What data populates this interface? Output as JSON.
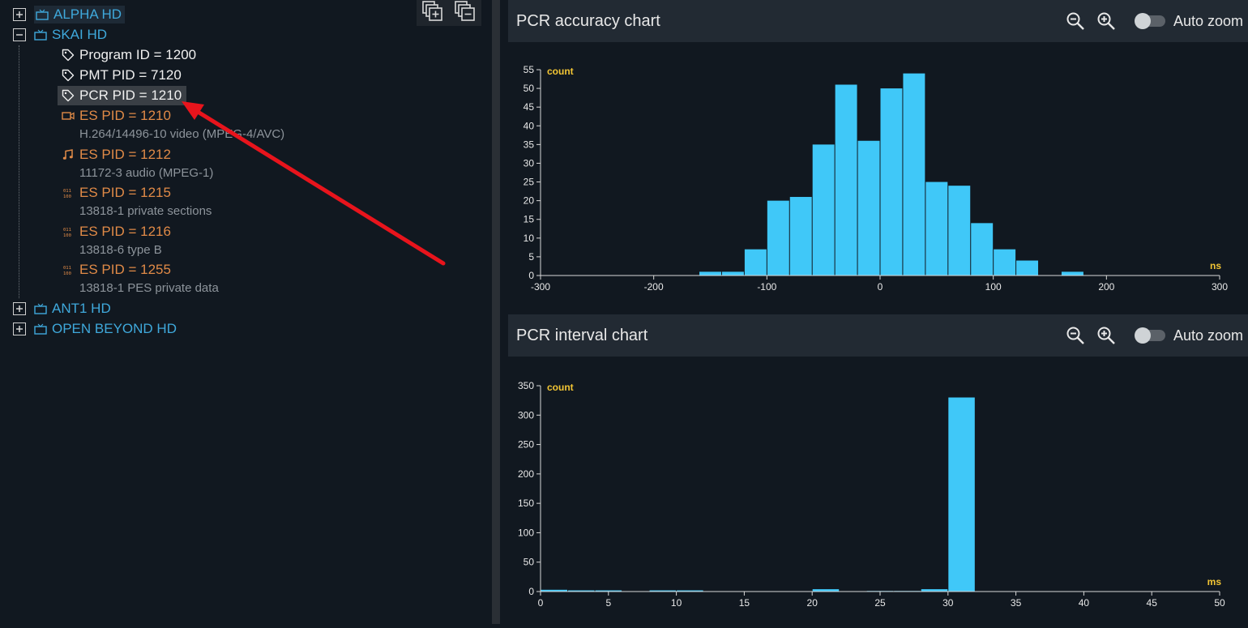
{
  "tree": {
    "services": [
      {
        "name": "ALPHA HD",
        "expanded": false
      },
      {
        "name": "SKAI HD",
        "expanded": true
      },
      {
        "name": "ANT1 HD",
        "expanded": false
      },
      {
        "name": "OPEN BEYOND HD",
        "expanded": false
      }
    ],
    "skai_children": {
      "program_id": "Program ID = 1200",
      "pmt_pid": "PMT PID = 7120",
      "pcr_pid": "PCR PID = 1210",
      "streams": [
        {
          "label": "ES PID = 1210",
          "desc": "H.264/14496-10 video (MPEG-4/AVC)",
          "icon": "video-camera-icon"
        },
        {
          "label": "ES PID = 1212",
          "desc": "11172-3 audio (MPEG-1)",
          "icon": "music-note-icon"
        },
        {
          "label": "ES PID = 1215",
          "desc": "13818-1 private sections",
          "icon": "binary-data-icon"
        },
        {
          "label": "ES PID = 1216",
          "desc": "13818-6 type B",
          "icon": "binary-data-icon"
        },
        {
          "label": "ES PID = 1255",
          "desc": "13818-1 PES private data",
          "icon": "binary-data-icon"
        }
      ]
    },
    "selected": "PCR PID = 1210"
  },
  "colors": {
    "service": "#3fa9dc",
    "es_pid": "#e08a47",
    "bar": "#40c8f8",
    "axis_unit": "#f2c534",
    "annotation_arrow": "#e8141c"
  },
  "panels": {
    "accuracy": {
      "title": "PCR accuracy chart",
      "auto_zoom_label": "Auto zoom",
      "auto_zoom_on": false
    },
    "interval": {
      "title": "PCR interval chart",
      "auto_zoom_label": "Auto zoom",
      "auto_zoom_on": false
    }
  },
  "chart_data": [
    {
      "type": "bar",
      "name": "PCR accuracy chart",
      "title": "PCR accuracy chart",
      "ylabel": "count",
      "xlabel": "ns",
      "xlim": [
        -300,
        300
      ],
      "ylim": [
        0,
        55
      ],
      "xticks": [
        -300,
        -200,
        -100,
        0,
        100,
        200,
        300
      ],
      "yticks": [
        0,
        5,
        10,
        15,
        20,
        25,
        30,
        35,
        40,
        45,
        50,
        55
      ],
      "bin_width": 20,
      "bins": [
        {
          "x": -160,
          "value": 1
        },
        {
          "x": -140,
          "value": 1
        },
        {
          "x": -120,
          "value": 7
        },
        {
          "x": -100,
          "value": 20
        },
        {
          "x": -80,
          "value": 21
        },
        {
          "x": -60,
          "value": 35
        },
        {
          "x": -40,
          "value": 51
        },
        {
          "x": -20,
          "value": 36
        },
        {
          "x": 0,
          "value": 50
        },
        {
          "x": 20,
          "value": 54
        },
        {
          "x": 40,
          "value": 25
        },
        {
          "x": 60,
          "value": 24
        },
        {
          "x": 80,
          "value": 14
        },
        {
          "x": 100,
          "value": 7
        },
        {
          "x": 120,
          "value": 4
        },
        {
          "x": 160,
          "value": 1
        }
      ],
      "grid": false
    },
    {
      "type": "bar",
      "name": "PCR interval chart",
      "title": "PCR interval chart",
      "ylabel": "count",
      "xlabel": "ms",
      "xlim": [
        0,
        50
      ],
      "ylim": [
        0,
        350
      ],
      "xticks": [
        0,
        5,
        10,
        15,
        20,
        25,
        30,
        35,
        40,
        45,
        50
      ],
      "yticks": [
        0,
        50,
        100,
        150,
        200,
        250,
        300,
        350
      ],
      "bin_width": 2,
      "bins": [
        {
          "x": 0,
          "value": 3
        },
        {
          "x": 2,
          "value": 2
        },
        {
          "x": 4,
          "value": 2
        },
        {
          "x": 8,
          "value": 2
        },
        {
          "x": 10,
          "value": 2
        },
        {
          "x": 20,
          "value": 4
        },
        {
          "x": 24,
          "value": 1
        },
        {
          "x": 26,
          "value": 1
        },
        {
          "x": 28,
          "value": 4
        },
        {
          "x": 30,
          "value": 330
        }
      ],
      "grid": false
    }
  ]
}
